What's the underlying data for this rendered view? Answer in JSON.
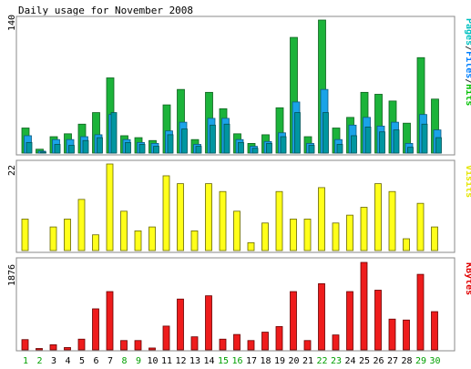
{
  "chart_data": [
    {
      "type": "bar",
      "title": "Daily usage for November 2008",
      "panel": "pages-files-hits",
      "ymax_label": "140",
      "categories": [
        "1",
        "2",
        "3",
        "4",
        "5",
        "6",
        "7",
        "8",
        "9",
        "10",
        "11",
        "12",
        "13",
        "14",
        "15",
        "16",
        "17",
        "18",
        "19",
        "20",
        "21",
        "22",
        "23",
        "24",
        "25",
        "26",
        "27",
        "28",
        "29",
        "30"
      ],
      "weekend_days": [
        "1",
        "2",
        "8",
        "9",
        "15",
        "16",
        "22",
        "23",
        "29",
        "30"
      ],
      "legend_segments": [
        {
          "text": "Pages",
          "color": "#00c0c0"
        },
        {
          "text": "/",
          "color": "#333333"
        },
        {
          "text": "Files",
          "color": "#0080ff"
        },
        {
          "text": "/",
          "color": "#333333"
        },
        {
          "text": "Hits",
          "color": "#00c000"
        }
      ],
      "series": [
        {
          "name": "Hits",
          "color": "#1cb33a",
          "values": [
            26,
            4,
            17,
            20,
            30,
            42,
            78,
            18,
            16,
            13,
            50,
            66,
            14,
            63,
            46,
            20,
            10,
            19,
            47,
            120,
            17,
            138,
            26,
            37,
            63,
            61,
            54,
            31,
            99,
            56
          ]
        },
        {
          "name": "Files",
          "color": "#1aa3e8",
          "values": [
            18,
            2,
            14,
            14,
            17,
            19,
            40,
            14,
            11,
            10,
            23,
            32,
            9,
            36,
            36,
            14,
            7,
            12,
            21,
            53,
            10,
            66,
            14,
            29,
            37,
            28,
            32,
            10,
            40,
            24
          ]
        },
        {
          "name": "Pages",
          "color": "#0096a0",
          "values": [
            11,
            1,
            9,
            8,
            13,
            16,
            42,
            11,
            9,
            7,
            19,
            25,
            7,
            29,
            30,
            11,
            5,
            10,
            17,
            42,
            8,
            42,
            9,
            18,
            27,
            22,
            24,
            6,
            30,
            16
          ]
        }
      ]
    },
    {
      "type": "bar",
      "panel": "visits",
      "ymax_label": "22",
      "legend_segments": [
        {
          "text": "Visits",
          "color": "#e6e600"
        }
      ],
      "series": [
        {
          "name": "Visits",
          "color": "#ffff1a",
          "values": [
            8,
            0,
            6,
            8,
            13,
            4,
            22,
            10,
            5,
            6,
            19,
            17,
            5,
            17,
            15,
            10,
            2,
            7,
            15,
            8,
            8,
            16,
            7,
            9,
            11,
            17,
            15,
            3,
            12,
            6
          ]
        }
      ]
    },
    {
      "type": "bar",
      "panel": "kbytes",
      "ymax_label": "1876",
      "legend_segments": [
        {
          "text": "KBytes",
          "color": "#e00000"
        }
      ],
      "series": [
        {
          "name": "KBytes",
          "color": "#ee1c1c",
          "values": [
            220,
            20,
            110,
            50,
            230,
            880,
            1250,
            200,
            200,
            40,
            510,
            1090,
            280,
            1160,
            230,
            330,
            200,
            380,
            500,
            1250,
            200,
            1420,
            320,
            1250,
            1876,
            1280,
            660,
            640,
            1620,
            820
          ]
        }
      ]
    }
  ]
}
